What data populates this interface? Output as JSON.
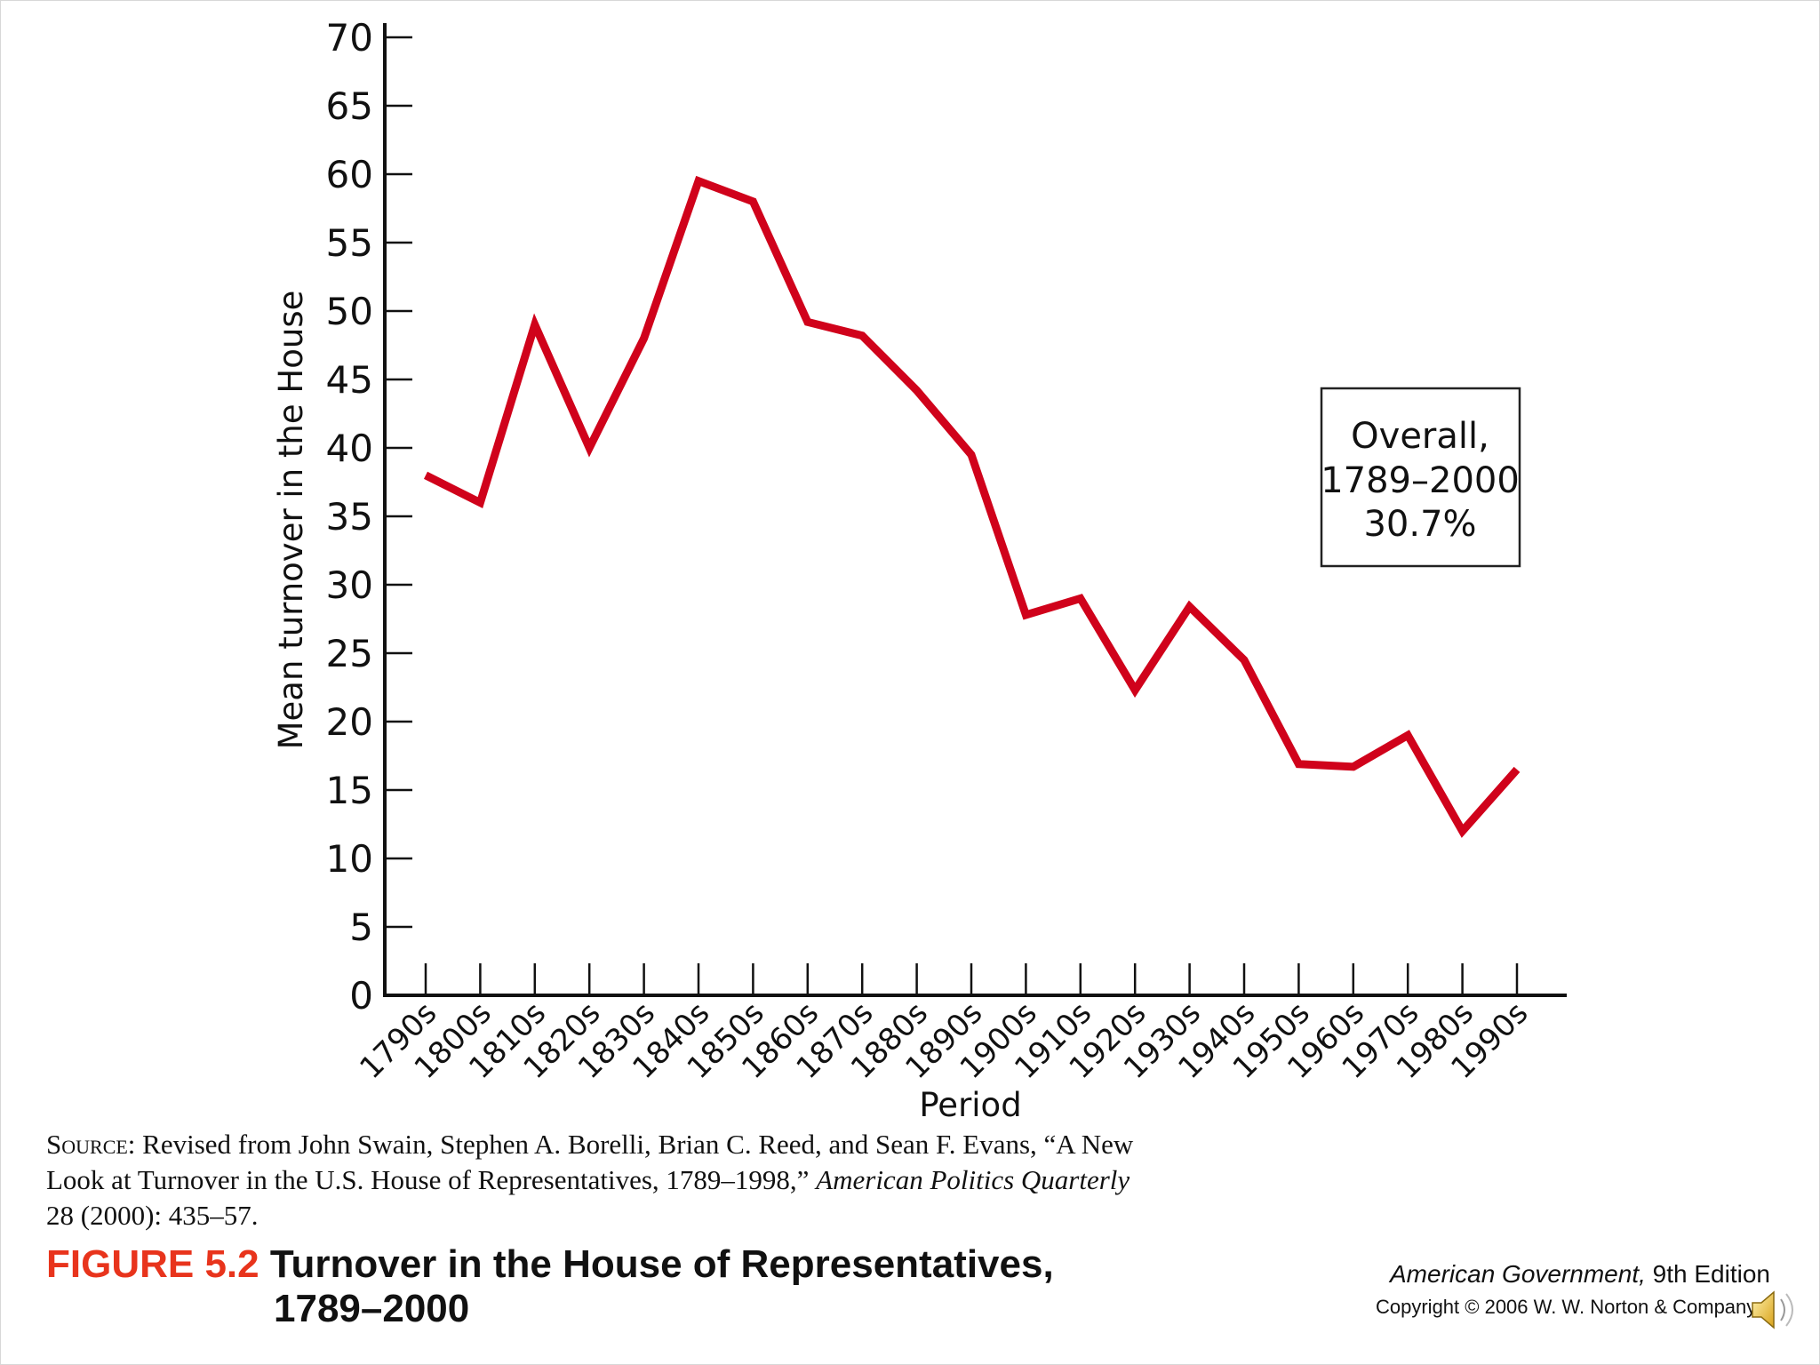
{
  "chart_data": {
    "type": "line",
    "title": "",
    "xlabel": "Period",
    "ylabel": "Mean turnover in the House",
    "ylim": [
      0,
      70
    ],
    "yticks": [
      0,
      5,
      10,
      15,
      20,
      25,
      30,
      35,
      40,
      45,
      50,
      55,
      60,
      65,
      70
    ],
    "categories": [
      "1790s",
      "1800s",
      "1810s",
      "1820s",
      "1830s",
      "1840s",
      "1850s",
      "1860s",
      "1870s",
      "1880s",
      "1890s",
      "1900s",
      "1910s",
      "1920s",
      "1930s",
      "1940s",
      "1950s",
      "1960s",
      "1970s",
      "1980s",
      "1990s"
    ],
    "series": [
      {
        "values": [
          38,
          36,
          49,
          40,
          48,
          59.5,
          58,
          49.2,
          48.2,
          44.2,
          39.5,
          27.8,
          29,
          22.3,
          28.4,
          24.5,
          16.9,
          16.7,
          19,
          12,
          16.5
        ]
      }
    ],
    "line_color": "#d0021b",
    "grid": false,
    "annotation": {
      "lines": [
        "Overall,",
        "1789–2000",
        "30.7%"
      ],
      "position": "right"
    }
  },
  "source_note": {
    "label": "Source:",
    "text_1": " Revised from John Swain, Stephen A. Borelli, Brian C. Reed, and Sean F. Evans, “A New Look at Turnover in the U.S. House of Representatives, 1789–1998,” ",
    "journal": "American Politics Quarterly",
    "text_2": " 28 (2000): 435–57."
  },
  "figure": {
    "number": "FIGURE 5.2",
    "title_line1": "Turnover in the House of Representatives,",
    "title_line2": "1789–2000",
    "number_color": "#e8341c"
  },
  "credit": {
    "book": "American Government,",
    "edition": " 9th Edition",
    "copyright": "Copyright © 2006 W. W. Norton & Company"
  },
  "icons": {
    "audio": "speaker-icon"
  }
}
